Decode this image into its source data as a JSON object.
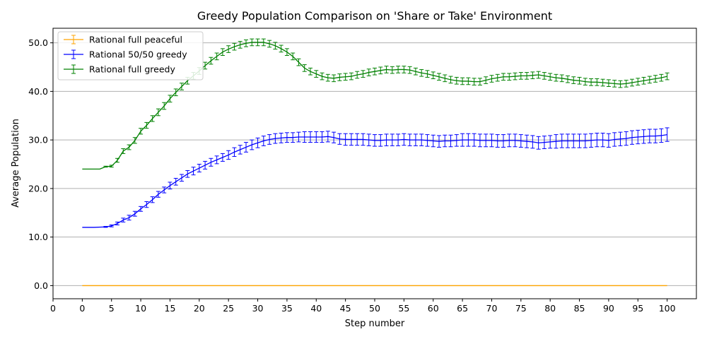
{
  "chart_data": {
    "type": "line",
    "title": "Greedy Population Comparison on 'Share or Take' Environment",
    "xlabel": "Step number",
    "ylabel": "Average Population",
    "xlim": [
      -5,
      105
    ],
    "ylim": [
      -2.7,
      53
    ],
    "x_ticks": [
      "0",
      "0",
      "5",
      "10",
      "15",
      "20",
      "25",
      "30",
      "35",
      "40",
      "45",
      "50",
      "55",
      "60",
      "65",
      "70",
      "75",
      "80",
      "85",
      "90",
      "95",
      "100"
    ],
    "y_ticks": [
      "0.0",
      "10.0",
      "20.0",
      "30.0",
      "40.0",
      "50.0"
    ],
    "grid": "horizontal",
    "legend_position": "top-left",
    "error_bars": true,
    "series": [
      {
        "name": "Rational full peaceful",
        "color": "#ffa500",
        "x": [
          0,
          5,
          10,
          15,
          20,
          25,
          30,
          35,
          40,
          45,
          50,
          55,
          60,
          65,
          70,
          75,
          80,
          85,
          90,
          95,
          100
        ],
        "y": [
          0,
          0,
          0,
          0,
          0,
          0,
          0,
          0,
          0,
          0,
          0,
          0,
          0,
          0,
          0,
          0,
          0,
          0,
          0,
          0,
          0
        ],
        "err": [
          0,
          0,
          0,
          0,
          0,
          0,
          0,
          0,
          0,
          0,
          0,
          0,
          0,
          0,
          0,
          0,
          0,
          0,
          0,
          0,
          0
        ]
      },
      {
        "name": "Rational 50/50 greedy",
        "color": "#0000ff",
        "x": [
          0,
          2,
          4,
          5,
          6,
          7,
          8,
          9,
          10,
          11,
          12,
          13,
          14,
          15,
          16,
          17,
          18,
          19,
          20,
          21,
          22,
          23,
          24,
          25,
          26,
          27,
          28,
          29,
          30,
          31,
          32,
          33,
          34,
          35,
          36,
          37,
          38,
          39,
          40,
          41,
          42,
          43,
          44,
          45,
          46,
          47,
          48,
          49,
          50,
          51,
          52,
          53,
          54,
          55,
          56,
          57,
          58,
          59,
          60,
          61,
          62,
          63,
          64,
          65,
          66,
          67,
          68,
          69,
          70,
          71,
          72,
          73,
          74,
          75,
          76,
          77,
          78,
          79,
          80,
          81,
          82,
          83,
          84,
          85,
          86,
          87,
          88,
          89,
          90,
          91,
          92,
          93,
          94,
          95,
          96,
          97,
          98,
          99,
          100
        ],
        "y": [
          12,
          12,
          12.1,
          12.3,
          12.8,
          13.5,
          14,
          14.8,
          15.8,
          16.7,
          17.7,
          18.8,
          19.7,
          20.6,
          21.4,
          22.2,
          23,
          23.6,
          24.2,
          24.8,
          25.4,
          25.9,
          26.4,
          26.9,
          27.5,
          28,
          28.5,
          29,
          29.4,
          29.8,
          30.1,
          30.3,
          30.4,
          30.5,
          30.5,
          30.6,
          30.6,
          30.6,
          30.6,
          30.6,
          30.7,
          30.5,
          30.2,
          30.1,
          30.1,
          30.1,
          30.1,
          30,
          29.9,
          29.9,
          30,
          30,
          30,
          30.1,
          30,
          30,
          30,
          29.9,
          29.8,
          29.7,
          29.8,
          29.8,
          29.9,
          30,
          30,
          30,
          29.9,
          29.9,
          29.9,
          29.8,
          29.8,
          29.9,
          29.9,
          29.8,
          29.7,
          29.6,
          29.4,
          29.5,
          29.6,
          29.7,
          29.8,
          29.8,
          29.8,
          29.8,
          29.8,
          29.9,
          30,
          30,
          29.9,
          30.1,
          30.2,
          30.3,
          30.5,
          30.6,
          30.7,
          30.8,
          30.8,
          30.9,
          31.1
        ],
        "err": [
          0,
          0,
          0.1,
          0.2,
          0.3,
          0.4,
          0.5,
          0.5,
          0.5,
          0.6,
          0.6,
          0.6,
          0.6,
          0.7,
          0.7,
          0.7,
          0.7,
          0.8,
          0.8,
          0.8,
          0.8,
          0.8,
          0.8,
          0.9,
          0.9,
          0.9,
          1,
          1,
          1,
          1,
          1,
          1,
          1,
          1,
          1,
          1,
          1.1,
          1.1,
          1.1,
          1.1,
          1.1,
          1.1,
          1.1,
          1.2,
          1.2,
          1.2,
          1.2,
          1.2,
          1.2,
          1.2,
          1.2,
          1.2,
          1.2,
          1.2,
          1.2,
          1.2,
          1.2,
          1.2,
          1.2,
          1.2,
          1.2,
          1.2,
          1.2,
          1.3,
          1.3,
          1.3,
          1.3,
          1.3,
          1.3,
          1.3,
          1.3,
          1.3,
          1.3,
          1.3,
          1.3,
          1.3,
          1.3,
          1.3,
          1.3,
          1.4,
          1.4,
          1.4,
          1.4,
          1.4,
          1.4,
          1.4,
          1.4,
          1.4,
          1.4,
          1.4,
          1.4,
          1.4,
          1.4,
          1.4,
          1.4,
          1.4,
          1.4,
          1.4,
          1.4
        ]
      },
      {
        "name": "Rational full greedy",
        "color": "#008000",
        "x": [
          0,
          2,
          3,
          4,
          5,
          6,
          7,
          8,
          9,
          10,
          11,
          12,
          13,
          14,
          15,
          16,
          17,
          18,
          19,
          20,
          21,
          22,
          23,
          24,
          25,
          26,
          27,
          28,
          29,
          30,
          31,
          32,
          33,
          34,
          35,
          36,
          37,
          38,
          39,
          40,
          41,
          42,
          43,
          44,
          45,
          46,
          47,
          48,
          49,
          50,
          51,
          52,
          53,
          54,
          55,
          56,
          57,
          58,
          59,
          60,
          61,
          62,
          63,
          64,
          65,
          66,
          67,
          68,
          69,
          70,
          71,
          72,
          73,
          74,
          75,
          76,
          77,
          78,
          79,
          80,
          81,
          82,
          83,
          84,
          85,
          86,
          87,
          88,
          89,
          90,
          91,
          92,
          93,
          94,
          95,
          96,
          97,
          98,
          99,
          100
        ],
        "y": [
          24,
          24,
          24,
          24.5,
          24.6,
          25.8,
          27.7,
          28.5,
          29.9,
          31.8,
          33,
          34.4,
          35.7,
          37,
          38.5,
          39.8,
          41,
          42.2,
          43.2,
          44.2,
          45.3,
          46.3,
          47.2,
          48.1,
          48.7,
          49.2,
          49.6,
          49.9,
          50.1,
          50.1,
          50.1,
          49.8,
          49.4,
          48.8,
          48.1,
          47.2,
          46,
          44.8,
          44.1,
          43.6,
          43.1,
          42.8,
          42.7,
          42.9,
          43,
          43.1,
          43.4,
          43.6,
          43.9,
          44.1,
          44.3,
          44.5,
          44.4,
          44.5,
          44.5,
          44.4,
          44.1,
          43.8,
          43.6,
          43.3,
          43,
          42.7,
          42.4,
          42.2,
          42.1,
          42.1,
          42,
          42,
          42.3,
          42.6,
          42.8,
          43,
          43,
          43.1,
          43.2,
          43.2,
          43.3,
          43.4,
          43.2,
          43,
          42.8,
          42.7,
          42.5,
          42.3,
          42.2,
          42,
          41.9,
          41.9,
          41.8,
          41.7,
          41.6,
          41.5,
          41.6,
          41.8,
          42,
          42.2,
          42.4,
          42.6,
          42.8,
          43.1
        ],
        "err": [
          0,
          0,
          0,
          0.1,
          0.2,
          0.4,
          0.5,
          0.5,
          0.6,
          0.6,
          0.6,
          0.6,
          0.7,
          0.7,
          0.7,
          0.7,
          0.7,
          0.7,
          0.7,
          0.7,
          0.7,
          0.7,
          0.7,
          0.7,
          0.7,
          0.7,
          0.7,
          0.7,
          0.7,
          0.7,
          0.7,
          0.7,
          0.7,
          0.7,
          0.7,
          0.7,
          0.7,
          0.7,
          0.7,
          0.7,
          0.7,
          0.7,
          0.7,
          0.7,
          0.7,
          0.7,
          0.7,
          0.7,
          0.7,
          0.7,
          0.7,
          0.7,
          0.7,
          0.7,
          0.7,
          0.7,
          0.7,
          0.7,
          0.7,
          0.7,
          0.7,
          0.7,
          0.7,
          0.7,
          0.7,
          0.7,
          0.7,
          0.7,
          0.7,
          0.7,
          0.7,
          0.7,
          0.7,
          0.7,
          0.7,
          0.7,
          0.7,
          0.7,
          0.7,
          0.7,
          0.7,
          0.7,
          0.7,
          0.7,
          0.7,
          0.7,
          0.7,
          0.7,
          0.7,
          0.7,
          0.7,
          0.7,
          0.7,
          0.7,
          0.7,
          0.7,
          0.7,
          0.7,
          0.7,
          0.7
        ]
      }
    ]
  }
}
